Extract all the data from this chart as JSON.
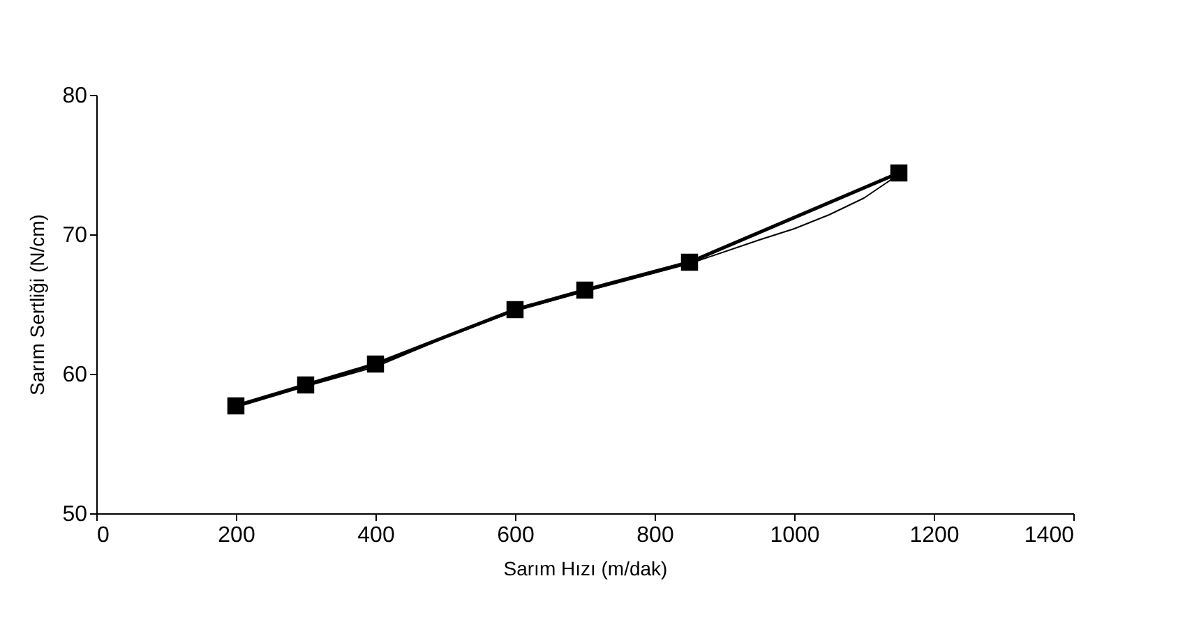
{
  "chart_data": {
    "type": "line",
    "xlabel": "Sarım Hızı (m/dak)",
    "ylabel": "Sarım Sertliği (N/cm)",
    "xlim": [
      0,
      1400
    ],
    "xticks": [
      0,
      200,
      400,
      600,
      800,
      1000,
      1200,
      1400
    ],
    "ylim": [
      50,
      80
    ],
    "yticks": [
      50,
      60,
      70,
      80
    ],
    "grid": false,
    "marker": "square",
    "line_style": "solid",
    "series": [
      {
        "color": "#000000",
        "x": [
          200,
          300,
          400,
          600,
          700,
          850,
          1150
        ],
        "values": [
          57.7,
          59.2,
          60.7,
          64.6,
          66.0,
          68.0,
          74.4
        ]
      },
      {
        "color": "#000000",
        "marker": "none",
        "x": [
          200,
          300,
          400,
          500,
          600,
          700,
          850,
          950,
          1000,
          1050,
          1100,
          1150
        ],
        "values": [
          57.6,
          59.1,
          60.5,
          62.6,
          64.5,
          65.9,
          67.9,
          69.6,
          70.4,
          71.4,
          72.6,
          74.3
        ]
      }
    ]
  }
}
